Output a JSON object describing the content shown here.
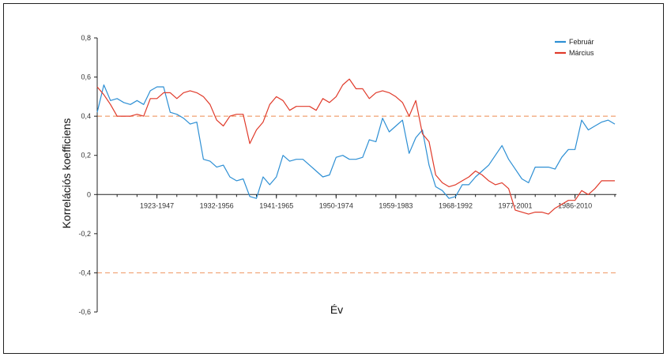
{
  "chart_data": {
    "type": "line",
    "title": "",
    "xlabel": "Év",
    "ylabel": "Korrelációs koefficiens",
    "ylim": [
      -0.6,
      0.8
    ],
    "y_ticks": [
      "0,8",
      "0,6",
      "0,4",
      "0,2",
      "0",
      "-0,2",
      "-0,4",
      "-0,6"
    ],
    "y_tick_values": [
      0.8,
      0.6,
      0.4,
      0.2,
      0,
      -0.2,
      -0.4,
      -0.6
    ],
    "x_range": [
      1,
      79
    ],
    "x_ticks": [
      {
        "x": 10,
        "label": "1923-1947"
      },
      {
        "x": 19,
        "label": "1932-1956"
      },
      {
        "x": 28,
        "label": "1941-1965"
      },
      {
        "x": 37,
        "label": "1950-1974"
      },
      {
        "x": 46,
        "label": "1959-1983"
      },
      {
        "x": 55,
        "label": "1968-1992"
      },
      {
        "x": 64,
        "label": "1977-2001"
      },
      {
        "x": 73,
        "label": "1986-2010"
      }
    ],
    "threshold_lines": [
      0.4,
      -0.4
    ],
    "grid": false,
    "legend_position": "top-right",
    "series": [
      {
        "name": "Február",
        "color": "#2d8fd4",
        "values": [
          0.42,
          0.56,
          0.48,
          0.49,
          0.47,
          0.46,
          0.48,
          0.46,
          0.53,
          0.55,
          0.55,
          0.42,
          0.41,
          0.39,
          0.36,
          0.37,
          0.18,
          0.17,
          0.14,
          0.15,
          0.09,
          0.07,
          0.08,
          -0.01,
          -0.02,
          0.09,
          0.05,
          0.09,
          0.2,
          0.17,
          0.18,
          0.18,
          0.15,
          0.12,
          0.09,
          0.1,
          0.19,
          0.2,
          0.18,
          0.18,
          0.19,
          0.28,
          0.27,
          0.39,
          0.32,
          0.35,
          0.38,
          0.21,
          0.29,
          0.33,
          0.15,
          0.04,
          0.02,
          -0.02,
          -0.01,
          0.05,
          0.05,
          0.09,
          0.12,
          0.15,
          0.2,
          0.25,
          0.18,
          0.13,
          0.08,
          0.06,
          0.14,
          0.14,
          0.14,
          0.13,
          0.19,
          0.23,
          0.23,
          0.38,
          0.33,
          0.35,
          0.37,
          0.38,
          0.36
        ]
      },
      {
        "name": "Március",
        "color": "#e03a2a",
        "values": [
          0.55,
          0.51,
          0.46,
          0.4,
          0.4,
          0.4,
          0.41,
          0.4,
          0.49,
          0.49,
          0.52,
          0.52,
          0.49,
          0.52,
          0.53,
          0.52,
          0.5,
          0.46,
          0.38,
          0.35,
          0.4,
          0.41,
          0.41,
          0.26,
          0.33,
          0.37,
          0.46,
          0.5,
          0.48,
          0.43,
          0.45,
          0.45,
          0.45,
          0.43,
          0.49,
          0.47,
          0.5,
          0.56,
          0.59,
          0.54,
          0.54,
          0.49,
          0.52,
          0.53,
          0.52,
          0.5,
          0.47,
          0.4,
          0.48,
          0.31,
          0.27,
          0.1,
          0.06,
          0.04,
          0.05,
          0.07,
          0.09,
          0.12,
          0.1,
          0.07,
          0.05,
          0.06,
          0.03,
          -0.08,
          -0.09,
          -0.1,
          -0.09,
          -0.09,
          -0.1,
          -0.07,
          -0.05,
          -0.03,
          -0.03,
          0.02,
          0.0,
          0.03,
          0.07,
          0.07,
          0.07
        ]
      }
    ]
  }
}
